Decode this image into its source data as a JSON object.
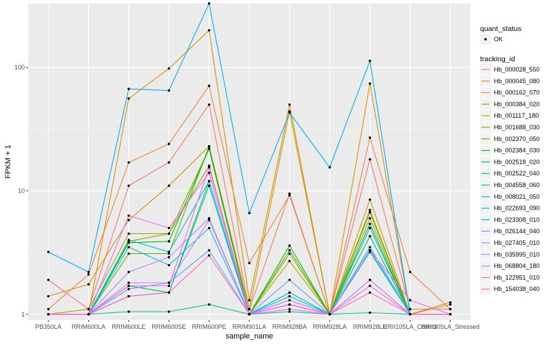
{
  "chart_data": {
    "type": "line",
    "xlabel": "sample_name",
    "ylabel": "FPKM + 1",
    "y_scale": "log10",
    "ylim": [
      0.9,
      330
    ],
    "y_ticks": [
      1,
      10,
      100
    ],
    "y_tick_labels": [
      "1",
      "10",
      "100"
    ],
    "categories": [
      "PB350LA",
      "RRIM600LA",
      "RRIM600LE",
      "RRIM600SE",
      "RRIM600PE",
      "RRIM901LA",
      "RRIM928BA",
      "RRIM928LA",
      "RRIM928LE",
      "RRII105LA_Control",
      "RRII105LA_Stressed"
    ],
    "grid": true,
    "legend_position": "right",
    "point_legend": {
      "title": "quant_status",
      "entries": [
        {
          "label": "OK"
        }
      ]
    },
    "line_legend_title": "tracking_id",
    "series": [
      {
        "name": "Hb_000028_550",
        "color": "#F8766D",
        "values": [
          1.9,
          1.1,
          11,
          17,
          50,
          1.1,
          9.5,
          1,
          18,
          1.1,
          1.1
        ]
      },
      {
        "name": "Hb_000045_080",
        "color": "#EC823C",
        "values": [
          1.1,
          2.1,
          17,
          24,
          71,
          2.6,
          9.2,
          1,
          27,
          2.2,
          1.1
        ]
      },
      {
        "name": "Hb_000162_070",
        "color": "#DB8E00",
        "values": [
          1.0,
          1.0,
          56,
          98,
          200,
          1.3,
          50,
          1,
          74,
          1.0,
          1.2
        ]
      },
      {
        "name": "Hb_000384_020",
        "color": "#C79800",
        "values": [
          1.4,
          1.75,
          5.8,
          11,
          23,
          1.1,
          44,
          1,
          8.5,
          1.0,
          1.25
        ]
      },
      {
        "name": "Hb_001117_180",
        "color": "#AEA200",
        "values": [
          1.0,
          1.1,
          4.5,
          4.5,
          22,
          1.0,
          2.7,
          1,
          7.0,
          1.0,
          1.0
        ]
      },
      {
        "name": "Hb_001688_030",
        "color": "#8FAA00",
        "values": [
          1.0,
          1.0,
          3.9,
          4.5,
          16,
          1.0,
          3.1,
          1,
          6.0,
          1.0,
          1.0
        ]
      },
      {
        "name": "Hb_002370_050",
        "color": "#64B200",
        "values": [
          1.0,
          1.0,
          3.1,
          3.1,
          23,
          1.0,
          3.3,
          1,
          6.7,
          1.0,
          1.0
        ]
      },
      {
        "name": "Hb_002384_030",
        "color": "#00B81B",
        "values": [
          1.0,
          1.0,
          3.8,
          3.9,
          22,
          1.0,
          3.6,
          1,
          5.4,
          1.0,
          1.0
        ]
      },
      {
        "name": "Hb_002518_020",
        "color": "#00BD5C",
        "values": [
          1.0,
          1.0,
          1.7,
          1.5,
          12,
          1.0,
          1.5,
          1,
          4.3,
          1.0,
          1.0
        ]
      },
      {
        "name": "Hb_002522_040",
        "color": "#00C08E",
        "values": [
          1.0,
          1.0,
          1.05,
          1.05,
          1.2,
          1.0,
          1.05,
          1,
          1.03,
          1.0,
          1.0
        ]
      },
      {
        "name": "Hb_004558_060",
        "color": "#00C1B2",
        "values": [
          1.0,
          1.0,
          1.4,
          1.5,
          11,
          1.0,
          1.2,
          1,
          3.2,
          1.0,
          1.0
        ]
      },
      {
        "name": "Hb_008021_050",
        "color": "#00BED1",
        "values": [
          1.0,
          1.0,
          4.0,
          3.2,
          12,
          1.0,
          1.4,
          1,
          5.0,
          1.0,
          1.0
        ]
      },
      {
        "name": "Hb_022693_090",
        "color": "#00B8E7",
        "values": [
          1.0,
          1.0,
          3.5,
          2.5,
          5.0,
          1.0,
          1.5,
          1,
          3.5,
          1.0,
          1.0
        ]
      },
      {
        "name": "Hb_023308_010",
        "color": "#00ABFD",
        "values": [
          3.2,
          2.2,
          67,
          65,
          330,
          6.6,
          43,
          15.5,
          113,
          1.0,
          1.0
        ]
      },
      {
        "name": "Hb_026144_040",
        "color": "#619CFF",
        "values": [
          1.0,
          1.0,
          1.6,
          1.8,
          3.3,
          1.0,
          1.9,
          1,
          3.3,
          1.0,
          1.0
        ]
      },
      {
        "name": "Hb_027405_010",
        "color": "#A58AFF",
        "values": [
          1.0,
          1.0,
          2.2,
          2.9,
          6.0,
          1.0,
          1.3,
          1,
          1.9,
          1.0,
          1.0
        ]
      },
      {
        "name": "Hb_035995_010",
        "color": "#C77CFF",
        "values": [
          1.0,
          1.0,
          1.8,
          1.8,
          5.8,
          1.0,
          1.3,
          1,
          1.9,
          1.0,
          1.0
        ]
      },
      {
        "name": "Hb_068804_180",
        "color": "#E76BF3",
        "values": [
          1.0,
          1.0,
          6.3,
          5.0,
          14,
          1.0,
          1.1,
          1,
          3.3,
          1.3,
          1.0
        ]
      },
      {
        "name": "Hb_122951_010",
        "color": "#FA62DB",
        "values": [
          1.0,
          1.0,
          1.7,
          1.7,
          15.5,
          1.0,
          1.2,
          1,
          1.7,
          1.0,
          1.0
        ]
      },
      {
        "name": "Hb_154038_040",
        "color": "#FF62BC",
        "values": [
          1.0,
          1.0,
          1.4,
          1.5,
          3.0,
          1.0,
          1.2,
          1,
          1.5,
          1.0,
          1.0
        ]
      }
    ]
  }
}
